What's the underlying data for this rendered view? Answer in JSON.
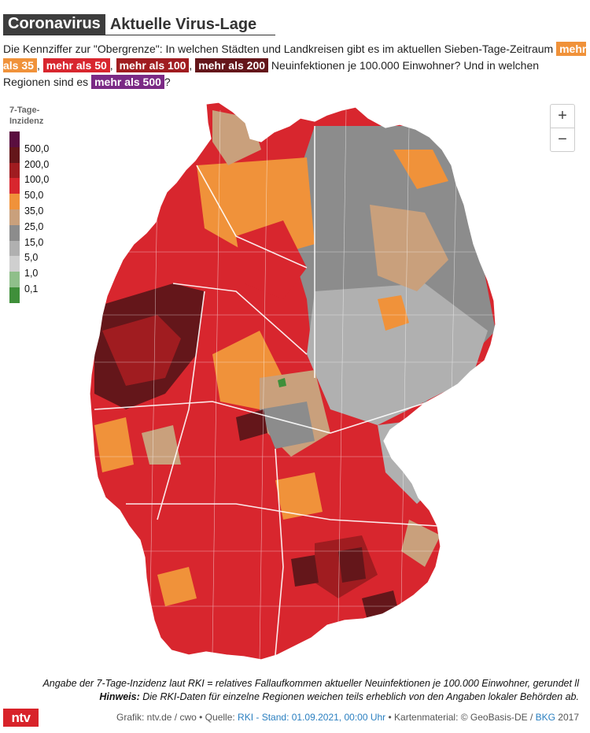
{
  "header": {
    "tag": "Coronavirus",
    "title": "Aktuelle Virus-Lage"
  },
  "intro": {
    "part1": "Die Kennziffer zur \"Obergrenze\": In welchen Städten und Landkreisen gibt es im aktuellen Sieben-Tage-Zeitraum ",
    "tag35": "mehr als 35",
    "sep1": ", ",
    "tag50": "mehr als 50",
    "sep2": ", ",
    "tag100": "mehr als 100",
    "sep3": ", ",
    "tag200": "mehr als 200",
    "part2": " Neuinfektionen je 100.000 Einwohner? Und in welchen Regionen sind es ",
    "tag500": "mehr als 500",
    "part3": "?"
  },
  "legend": {
    "title_line1": "7-Tage-",
    "title_line2": "Inzidenz",
    "items": [
      {
        "label": "500,0",
        "color": "#5a0e3f"
      },
      {
        "label": "200,0",
        "color": "#64161a"
      },
      {
        "label": "100,0",
        "color": "#a01c20"
      },
      {
        "label": "50,0",
        "color": "#d8262e"
      },
      {
        "label": "35,0",
        "color": "#f0923a"
      },
      {
        "label": "25,0",
        "color": "#c9a07c"
      },
      {
        "label": "15,0",
        "color": "#8c8c8c"
      },
      {
        "label": "5,0",
        "color": "#b0b0b0"
      },
      {
        "label": "1,0",
        "color": "#cfcfcf"
      },
      {
        "label": "0,1",
        "color": "#8fbf8a"
      },
      {
        "label": "",
        "color": "#3f8f3a"
      }
    ]
  },
  "zoom": {
    "in": "+",
    "out": "−"
  },
  "footer": {
    "note1": "Angabe der 7-Tage-Inzidenz laut RKI = relatives Fallaufkommen aktueller Neuinfektionen je 100.000 Einwohner, gerundet ll",
    "note2_bold": "Hinweis:",
    "note2_rest": " Die RKI-Daten für einzelne Regionen weichen teils erheblich von den Angaben lokaler Behörden ab.",
    "logo": "ntv",
    "credit_grafik": "Grafik: ntv.de / cwo • Quelle: ",
    "credit_source": "RKI - Stand: 01.09.2021, 00:00 Uhr",
    "credit_map": " • Kartenmaterial: © GeoBasis-DE / ",
    "credit_bkg": "BKG",
    "credit_year": " 2017"
  },
  "colors": {
    "lt35": "#8c8c8c",
    "lt25": "#b0b0b0",
    "c25": "#c9a07c",
    "c35": "#f0923a",
    "c50": "#d8262e",
    "c100": "#a01c20",
    "c200": "#64161a",
    "green": "#3f8f3a"
  }
}
